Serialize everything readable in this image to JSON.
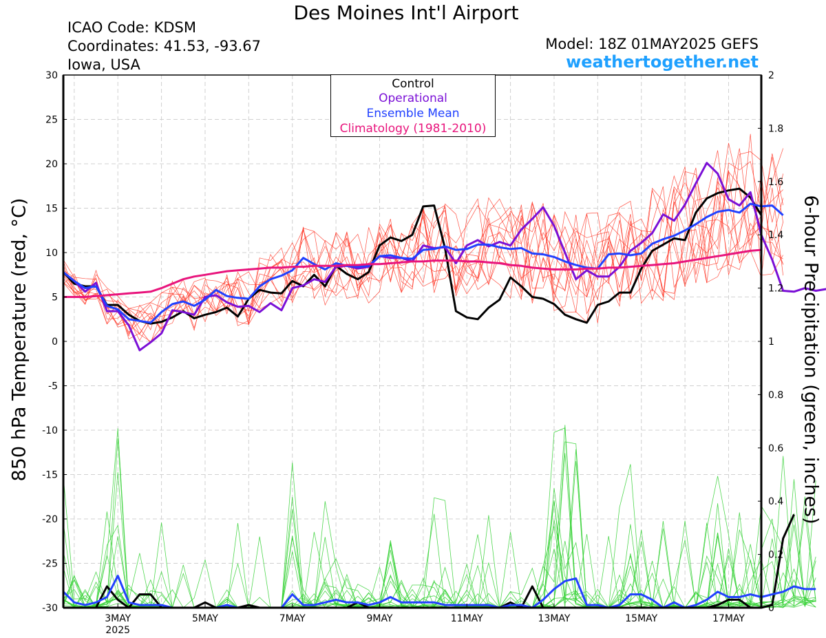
{
  "page": {
    "title": "Des Moines Int'l Airport",
    "station": {
      "icao_line": "ICAO Code: KDSM",
      "coords_line": "Coordinates: 41.53, -93.67",
      "region_line": "Iowa, USA"
    },
    "model_line": "Model: 18Z 01MAY2025 GEFS",
    "website": "weathertogether.net"
  },
  "colors": {
    "control": "#000000",
    "operational": "#7a0fd6",
    "ensemble_mean": "#2040ff",
    "climatology": "#e8147c",
    "members_temp": "#ff3020",
    "members_precip": "#30d030",
    "website": "#1ea0ff"
  },
  "chart_data": {
    "type": "line",
    "ylabel": "850 hPa Temperature (red, °C)",
    "y2label": "6-hour Precipitation (green, inches)",
    "ylim": [
      -30,
      30
    ],
    "y2lim": [
      0,
      2
    ],
    "yticks": [
      "30",
      "25",
      "20",
      "15",
      "10",
      "5",
      "0",
      "-5",
      "-10",
      "-15",
      "-20",
      "-25",
      "-30"
    ],
    "y2ticks": [
      "2",
      "1.8",
      "1.6",
      "1.4",
      "1.2",
      "1",
      "0.8",
      "0.6",
      "0.4",
      "0.2",
      "0"
    ],
    "x_unit": "days after 00Z 01MAY2025 (6-hour steps)",
    "xlim": [
      1.75,
      17.75
    ],
    "xticks": [
      {
        "x": 3,
        "label": "3MAY",
        "sub": "2025"
      },
      {
        "x": 5,
        "label": "5MAY",
        "sub": ""
      },
      {
        "x": 7,
        "label": "7MAY",
        "sub": ""
      },
      {
        "x": 9,
        "label": "9MAY",
        "sub": ""
      },
      {
        "x": 11,
        "label": "11MAY",
        "sub": ""
      },
      {
        "x": 13,
        "label": "13MAY",
        "sub": ""
      },
      {
        "x": 15,
        "label": "15MAY",
        "sub": ""
      },
      {
        "x": 17,
        "label": "17MAY",
        "sub": ""
      }
    ],
    "legend": [
      "Control",
      "Operational",
      "Ensemble Mean",
      "Climatology (1981-2010)"
    ],
    "legend_position": "top-center",
    "grid": true,
    "series": [
      {
        "name": "Control",
        "axis": "temp",
        "x0": 1.75,
        "dx": 0.25,
        "values": [
          7.8,
          6.5,
          6.2,
          6.2,
          4.1,
          4.1,
          3.0,
          2.3,
          2.0,
          2.2,
          2.7,
          3.4,
          2.6,
          3.0,
          3.3,
          3.8,
          2.8,
          4.8,
          5.8,
          5.5,
          5.4,
          6.8,
          6.2,
          7.5,
          6.2,
          8.5,
          7.6,
          7.0,
          7.8,
          10.8,
          11.7,
          11.3,
          12.0,
          15.2,
          15.3,
          10.5,
          3.4,
          2.7,
          2.5,
          3.8,
          4.7,
          7.2,
          6.2,
          5.0,
          4.8,
          4.2,
          3.0,
          2.5,
          2.1,
          4.1,
          4.5,
          5.5,
          5.5,
          8.2,
          10.2,
          10.9,
          11.6,
          11.4,
          14.5,
          16.1,
          16.7,
          17.0,
          17.2,
          16.2,
          14.2
        ]
      },
      {
        "name": "Operational",
        "axis": "temp",
        "x0": 1.75,
        "dx": 0.25,
        "values": [
          7.8,
          6.8,
          5.6,
          6.6,
          3.4,
          3.4,
          1.8,
          -1.0,
          -0.1,
          0.9,
          3.5,
          3.3,
          3.0,
          5.0,
          5.2,
          4.4,
          3.9,
          4.0,
          3.3,
          4.3,
          3.5,
          6.0,
          6.3,
          7.0,
          6.7,
          8.4,
          8.5,
          8.2,
          8.4,
          9.6,
          9.4,
          9.4,
          9.0,
          10.8,
          10.5,
          10.6,
          8.8,
          10.8,
          11.4,
          10.7,
          11.2,
          10.8,
          12.6,
          13.8,
          15.1,
          13.0,
          10.0,
          7.0,
          8.0,
          7.3,
          7.3,
          8.4,
          10.2,
          11.1,
          12.2,
          14.3,
          13.6,
          15.4,
          17.8,
          20.1,
          18.9,
          16.0,
          15.3,
          16.8,
          12.0,
          9.2,
          5.7,
          5.6,
          6.0,
          5.7,
          5.9,
          6.7
        ]
      },
      {
        "name": "Ensemble Mean",
        "axis": "temp",
        "x0": 1.75,
        "dx": 0.25,
        "values": [
          7.8,
          6.8,
          6.0,
          6.2,
          4.0,
          3.6,
          2.5,
          2.3,
          2.1,
          3.3,
          4.2,
          4.5,
          4.0,
          4.7,
          5.8,
          5.1,
          4.9,
          4.8,
          6.2,
          7.0,
          7.4,
          8.0,
          9.4,
          8.7,
          8.1,
          8.8,
          8.5,
          8.4,
          8.5,
          9.6,
          9.7,
          9.4,
          9.3,
          10.3,
          10.4,
          10.7,
          10.3,
          10.4,
          10.9,
          10.9,
          10.6,
          10.4,
          10.5,
          9.9,
          9.8,
          9.5,
          9.0,
          8.6,
          8.3,
          8.2,
          9.8,
          9.9,
          9.7,
          9.9,
          11.0,
          11.5,
          11.9,
          12.5,
          13.2,
          14.0,
          14.6,
          14.8,
          14.5,
          15.5,
          15.2,
          15.3,
          14.2
        ]
      },
      {
        "name": "Climatology (1981-2010)",
        "axis": "temp",
        "x0": 1.75,
        "dx": 0.25,
        "values": [
          5.0,
          5.0,
          5.0,
          5.1,
          5.2,
          5.3,
          5.4,
          5.5,
          5.6,
          6.0,
          6.5,
          7.0,
          7.3,
          7.5,
          7.7,
          7.9,
          8.0,
          8.1,
          8.2,
          8.3,
          8.3,
          8.4,
          8.4,
          8.5,
          8.5,
          8.5,
          8.6,
          8.6,
          8.7,
          8.7,
          8.8,
          8.9,
          9.0,
          9.0,
          9.1,
          9.1,
          9.1,
          9.0,
          9.0,
          8.9,
          8.8,
          8.6,
          8.5,
          8.3,
          8.2,
          8.1,
          8.1,
          8.1,
          8.2,
          8.2,
          8.3,
          8.3,
          8.4,
          8.5,
          8.6,
          8.7,
          8.8,
          9.0,
          9.2,
          9.4,
          9.6,
          9.8,
          10.0,
          10.2,
          10.3
        ]
      },
      {
        "name": "Control",
        "axis": "precip",
        "x0": 1.75,
        "dx": 0.25,
        "values": [
          0,
          0,
          0,
          0,
          0.08,
          0.03,
          0,
          0.05,
          0.05,
          0,
          0,
          0,
          0,
          0.02,
          0,
          0,
          0,
          0.01,
          0,
          0,
          0,
          0,
          0,
          0,
          0,
          0,
          0,
          0.02,
          0,
          0,
          0,
          0,
          0,
          0,
          0,
          0,
          0,
          0,
          0,
          0,
          0,
          0.02,
          0,
          0.08,
          0,
          0,
          0,
          0,
          0,
          0,
          0,
          0,
          0,
          0,
          0,
          0,
          0,
          0,
          0,
          0,
          0.01,
          0.03,
          0.03,
          0,
          0,
          0.01,
          0.26,
          0.35
        ]
      },
      {
        "name": "Ensemble Mean",
        "axis": "precip",
        "x0": 1.75,
        "dx": 0.25,
        "values": [
          0.06,
          0.02,
          0.01,
          0.02,
          0.04,
          0.12,
          0.02,
          0.01,
          0.01,
          0.01,
          0,
          0,
          0,
          0,
          0,
          0.01,
          0,
          0,
          0,
          0,
          0,
          0.05,
          0.01,
          0.01,
          0.02,
          0.03,
          0.02,
          0.02,
          0.01,
          0.02,
          0.04,
          0.02,
          0.02,
          0.02,
          0.02,
          0.01,
          0.01,
          0.01,
          0.01,
          0.01,
          0,
          0.01,
          0.01,
          0,
          0.03,
          0.07,
          0.1,
          0.11,
          0.01,
          0.01,
          0,
          0.01,
          0.05,
          0.05,
          0.03,
          0,
          0.02,
          0,
          0.01,
          0.03,
          0.06,
          0.04,
          0.04,
          0.05,
          0.04,
          0.05,
          0.06,
          0.08,
          0.07,
          0.07
        ]
      }
    ],
    "member_count_temp": 12,
    "member_count_precip": 16
  }
}
